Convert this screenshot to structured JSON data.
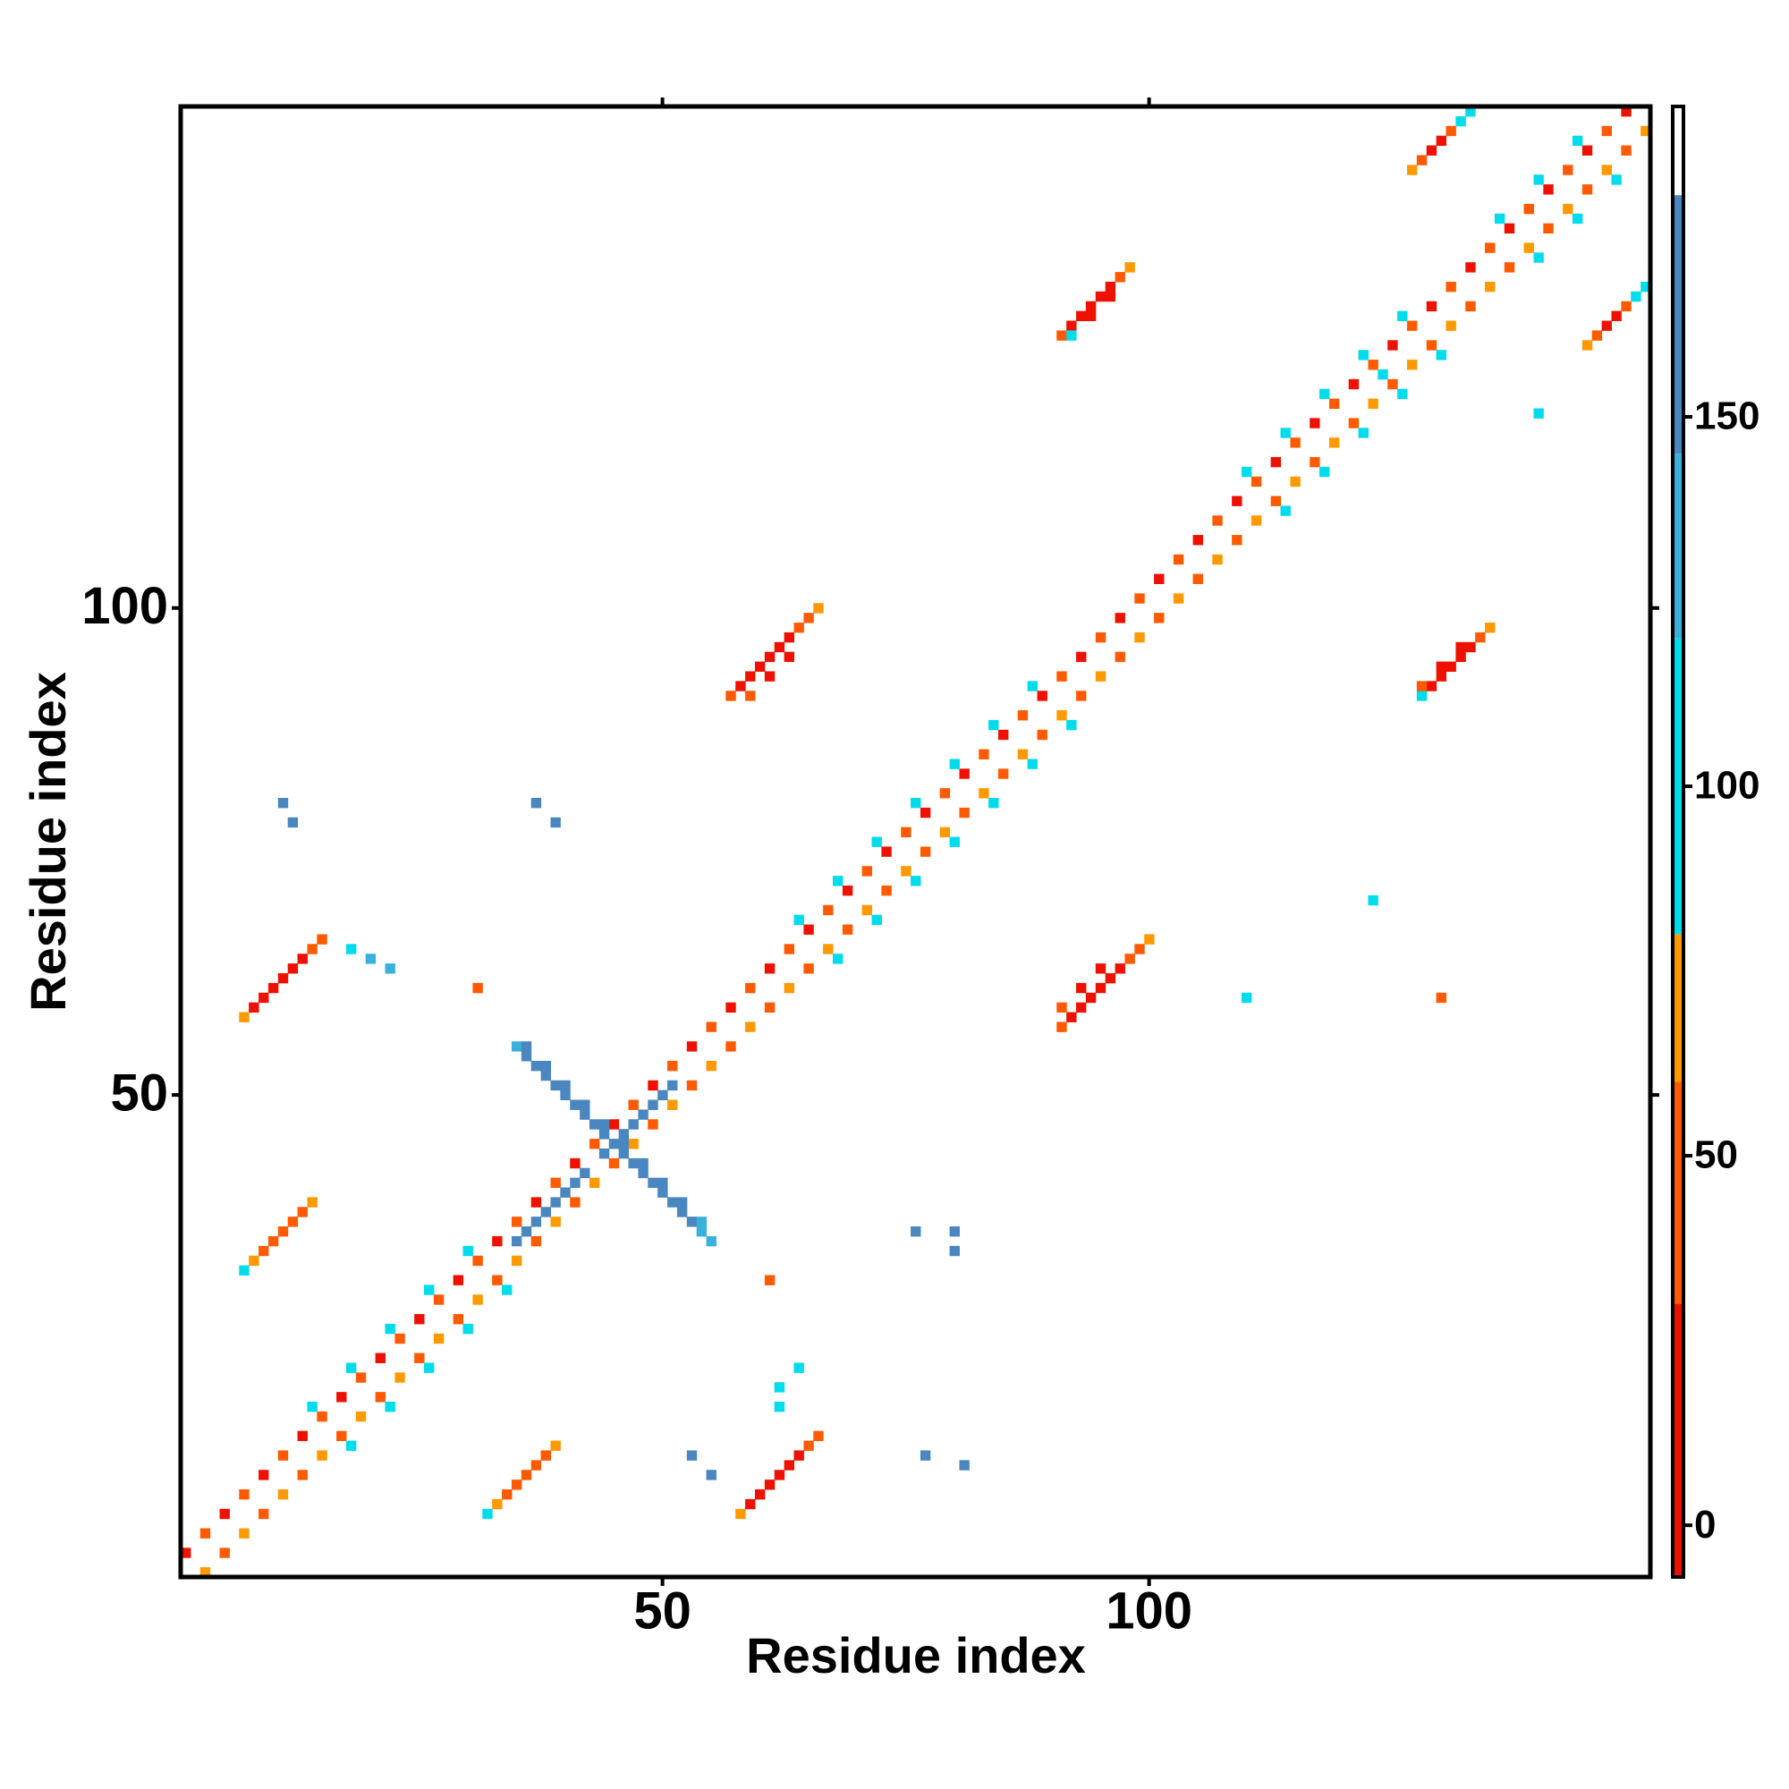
{
  "chart_data": {
    "type": "heatmap",
    "x_label": "Residue index",
    "y_label": "Residue index",
    "xlim": [
      0.5,
      151.5
    ],
    "ylim": [
      0.5,
      151.5
    ],
    "xticks": [
      50,
      100
    ],
    "yticks": [
      50,
      100
    ],
    "clim": [
      -7,
      192
    ],
    "cticks": [
      0,
      50,
      100,
      150
    ],
    "color_bins": [
      -7,
      30,
      60,
      80,
      120,
      145,
      180,
      192
    ],
    "colors": [
      "#ee1100",
      "#ff5a00",
      "#ff9900",
      "#00dcec",
      "#3cb0dc",
      "#4a86c0",
      "#ffffff"
    ],
    "cells": [
      [
        1,
        3,
        10
      ],
      [
        3,
        5,
        45
      ],
      [
        5,
        7,
        10
      ],
      [
        7,
        9,
        45
      ],
      [
        9,
        11,
        10
      ],
      [
        11,
        13,
        45
      ],
      [
        13,
        15,
        10
      ],
      [
        15,
        17,
        45
      ],
      [
        17,
        19,
        10
      ],
      [
        19,
        21,
        45
      ],
      [
        21,
        23,
        10
      ],
      [
        23,
        25,
        45
      ],
      [
        25,
        27,
        10
      ],
      [
        27,
        29,
        45
      ],
      [
        29,
        31,
        10
      ],
      [
        31,
        33,
        45
      ],
      [
        33,
        35,
        10
      ],
      [
        35,
        37,
        45
      ],
      [
        37,
        39,
        10
      ],
      [
        39,
        41,
        45
      ],
      [
        41,
        43,
        10
      ],
      [
        43,
        45,
        45
      ],
      [
        45,
        47,
        10
      ],
      [
        47,
        49,
        45
      ],
      [
        49,
        51,
        10
      ],
      [
        51,
        53,
        45
      ],
      [
        53,
        55,
        10
      ],
      [
        55,
        57,
        45
      ],
      [
        57,
        59,
        10
      ],
      [
        59,
        61,
        45
      ],
      [
        61,
        63,
        10
      ],
      [
        63,
        65,
        45
      ],
      [
        65,
        67,
        10
      ],
      [
        67,
        69,
        45
      ],
      [
        69,
        71,
        10
      ],
      [
        71,
        73,
        45
      ],
      [
        73,
        75,
        10
      ],
      [
        75,
        77,
        45
      ],
      [
        77,
        79,
        10
      ],
      [
        79,
        81,
        45
      ],
      [
        81,
        83,
        10
      ],
      [
        83,
        85,
        45
      ],
      [
        85,
        87,
        10
      ],
      [
        87,
        89,
        45
      ],
      [
        89,
        91,
        10
      ],
      [
        91,
        93,
        45
      ],
      [
        93,
        95,
        10
      ],
      [
        95,
        97,
        45
      ],
      [
        97,
        99,
        10
      ],
      [
        99,
        101,
        45
      ],
      [
        101,
        103,
        10
      ],
      [
        103,
        105,
        45
      ],
      [
        105,
        107,
        10
      ],
      [
        107,
        109,
        45
      ],
      [
        109,
        111,
        10
      ],
      [
        111,
        113,
        45
      ],
      [
        113,
        115,
        10
      ],
      [
        115,
        117,
        45
      ],
      [
        117,
        119,
        10
      ],
      [
        119,
        121,
        45
      ],
      [
        121,
        123,
        10
      ],
      [
        123,
        125,
        45
      ],
      [
        125,
        127,
        10
      ],
      [
        127,
        129,
        45
      ],
      [
        129,
        131,
        10
      ],
      [
        131,
        133,
        45
      ],
      [
        133,
        135,
        10
      ],
      [
        135,
        137,
        45
      ],
      [
        137,
        139,
        10
      ],
      [
        139,
        141,
        45
      ],
      [
        141,
        143,
        10
      ],
      [
        143,
        145,
        45
      ],
      [
        145,
        147,
        10
      ],
      [
        147,
        149,
        45
      ],
      [
        149,
        151,
        10
      ],
      [
        3,
        1,
        70
      ],
      [
        5,
        3,
        45
      ],
      [
        7,
        5,
        70
      ],
      [
        9,
        7,
        45
      ],
      [
        11,
        9,
        70
      ],
      [
        13,
        11,
        45
      ],
      [
        15,
        13,
        70
      ],
      [
        17,
        15,
        45
      ],
      [
        19,
        17,
        70
      ],
      [
        21,
        19,
        45
      ],
      [
        23,
        21,
        70
      ],
      [
        25,
        23,
        45
      ],
      [
        27,
        25,
        70
      ],
      [
        29,
        27,
        45
      ],
      [
        31,
        29,
        70
      ],
      [
        33,
        31,
        45
      ],
      [
        35,
        33,
        70
      ],
      [
        37,
        35,
        45
      ],
      [
        39,
        37,
        70
      ],
      [
        41,
        39,
        45
      ],
      [
        43,
        41,
        70
      ],
      [
        45,
        43,
        45
      ],
      [
        47,
        45,
        70
      ],
      [
        49,
        47,
        45
      ],
      [
        51,
        49,
        70
      ],
      [
        53,
        51,
        45
      ],
      [
        55,
        53,
        70
      ],
      [
        57,
        55,
        45
      ],
      [
        59,
        57,
        70
      ],
      [
        61,
        59,
        45
      ],
      [
        63,
        61,
        70
      ],
      [
        65,
        63,
        45
      ],
      [
        67,
        65,
        70
      ],
      [
        69,
        67,
        45
      ],
      [
        71,
        69,
        70
      ],
      [
        73,
        71,
        45
      ],
      [
        75,
        73,
        70
      ],
      [
        77,
        75,
        45
      ],
      [
        79,
        77,
        70
      ],
      [
        81,
        79,
        45
      ],
      [
        83,
        81,
        70
      ],
      [
        85,
        83,
        45
      ],
      [
        87,
        85,
        70
      ],
      [
        89,
        87,
        45
      ],
      [
        91,
        89,
        70
      ],
      [
        93,
        91,
        45
      ],
      [
        95,
        93,
        70
      ],
      [
        97,
        95,
        45
      ],
      [
        99,
        97,
        70
      ],
      [
        101,
        99,
        45
      ],
      [
        103,
        101,
        70
      ],
      [
        105,
        103,
        45
      ],
      [
        107,
        105,
        70
      ],
      [
        109,
        107,
        45
      ],
      [
        111,
        109,
        70
      ],
      [
        113,
        111,
        45
      ],
      [
        115,
        113,
        70
      ],
      [
        117,
        115,
        45
      ],
      [
        119,
        117,
        70
      ],
      [
        121,
        119,
        45
      ],
      [
        123,
        121,
        70
      ],
      [
        125,
        123,
        45
      ],
      [
        127,
        125,
        70
      ],
      [
        129,
        127,
        45
      ],
      [
        131,
        129,
        70
      ],
      [
        133,
        131,
        45
      ],
      [
        135,
        133,
        70
      ],
      [
        137,
        135,
        45
      ],
      [
        139,
        137,
        70
      ],
      [
        141,
        139,
        45
      ],
      [
        143,
        141,
        70
      ],
      [
        145,
        143,
        45
      ],
      [
        147,
        145,
        70
      ],
      [
        149,
        147,
        45
      ],
      [
        151,
        149,
        70
      ],
      [
        14,
        18,
        100
      ],
      [
        18,
        22,
        100
      ],
      [
        22,
        26,
        100
      ],
      [
        26,
        30,
        100
      ],
      [
        30,
        34,
        100
      ],
      [
        64,
        68,
        100
      ],
      [
        68,
        72,
        100
      ],
      [
        72,
        76,
        100
      ],
      [
        76,
        80,
        100
      ],
      [
        80,
        84,
        100
      ],
      [
        84,
        88,
        100
      ],
      [
        88,
        92,
        100
      ],
      [
        110,
        114,
        100
      ],
      [
        114,
        118,
        100
      ],
      [
        118,
        122,
        100
      ],
      [
        122,
        126,
        100
      ],
      [
        126,
        130,
        100
      ],
      [
        136,
        140,
        100
      ],
      [
        140,
        144,
        100
      ],
      [
        144,
        148,
        100
      ],
      [
        18,
        14,
        100
      ],
      [
        22,
        18,
        100
      ],
      [
        26,
        22,
        100
      ],
      [
        30,
        26,
        100
      ],
      [
        34,
        30,
        100
      ],
      [
        68,
        64,
        100
      ],
      [
        72,
        68,
        100
      ],
      [
        76,
        72,
        100
      ],
      [
        80,
        76,
        100
      ],
      [
        84,
        80,
        100
      ],
      [
        88,
        84,
        100
      ],
      [
        92,
        88,
        100
      ],
      [
        114,
        110,
        100
      ],
      [
        118,
        114,
        100
      ],
      [
        122,
        118,
        100
      ],
      [
        126,
        122,
        100
      ],
      [
        130,
        126,
        100
      ],
      [
        140,
        136,
        100
      ],
      [
        144,
        140,
        100
      ],
      [
        148,
        144,
        100
      ],
      [
        91,
        128,
        45
      ],
      [
        92,
        129,
        10
      ],
      [
        93,
        130,
        10
      ],
      [
        94,
        131,
        10
      ],
      [
        95,
        132,
        10
      ],
      [
        96,
        133,
        10
      ],
      [
        97,
        134,
        45
      ],
      [
        98,
        135,
        70
      ],
      [
        92,
        128,
        100
      ],
      [
        94,
        130,
        10
      ],
      [
        96,
        132,
        10
      ],
      [
        128,
        91,
        100
      ],
      [
        129,
        92,
        10
      ],
      [
        130,
        93,
        10
      ],
      [
        131,
        94,
        10
      ],
      [
        132,
        95,
        10
      ],
      [
        133,
        96,
        10
      ],
      [
        134,
        97,
        45
      ],
      [
        135,
        98,
        70
      ],
      [
        128,
        92,
        45
      ],
      [
        130,
        94,
        10
      ],
      [
        132,
        96,
        10
      ],
      [
        57,
        91,
        45
      ],
      [
        58,
        92,
        10
      ],
      [
        59,
        93,
        10
      ],
      [
        60,
        94,
        10
      ],
      [
        61,
        95,
        10
      ],
      [
        62,
        96,
        10
      ],
      [
        63,
        97,
        10
      ],
      [
        64,
        98,
        45
      ],
      [
        65,
        99,
        45
      ],
      [
        66,
        100,
        70
      ],
      [
        59,
        91,
        45
      ],
      [
        61,
        93,
        10
      ],
      [
        63,
        95,
        10
      ],
      [
        91,
        57,
        45
      ],
      [
        92,
        58,
        10
      ],
      [
        93,
        59,
        10
      ],
      [
        94,
        60,
        10
      ],
      [
        95,
        61,
        10
      ],
      [
        96,
        62,
        10
      ],
      [
        97,
        63,
        10
      ],
      [
        98,
        64,
        45
      ],
      [
        99,
        65,
        45
      ],
      [
        100,
        66,
        70
      ],
      [
        91,
        59,
        45
      ],
      [
        93,
        61,
        10
      ],
      [
        95,
        63,
        10
      ],
      [
        7,
        58,
        70
      ],
      [
        8,
        59,
        10
      ],
      [
        9,
        60,
        10
      ],
      [
        10,
        61,
        10
      ],
      [
        11,
        62,
        10
      ],
      [
        12,
        63,
        10
      ],
      [
        13,
        64,
        10
      ],
      [
        14,
        65,
        45
      ],
      [
        15,
        66,
        45
      ],
      [
        58,
        7,
        70
      ],
      [
        59,
        8,
        10
      ],
      [
        60,
        9,
        10
      ],
      [
        61,
        10,
        10
      ],
      [
        62,
        11,
        10
      ],
      [
        63,
        12,
        10
      ],
      [
        64,
        13,
        10
      ],
      [
        65,
        14,
        45
      ],
      [
        66,
        15,
        45
      ],
      [
        7,
        32,
        100
      ],
      [
        8,
        33,
        70
      ],
      [
        9,
        34,
        45
      ],
      [
        10,
        35,
        45
      ],
      [
        11,
        36,
        45
      ],
      [
        12,
        37,
        45
      ],
      [
        13,
        38,
        45
      ],
      [
        14,
        39,
        70
      ],
      [
        32,
        7,
        100
      ],
      [
        33,
        8,
        70
      ],
      [
        34,
        9,
        45
      ],
      [
        35,
        10,
        45
      ],
      [
        36,
        11,
        45
      ],
      [
        37,
        12,
        45
      ],
      [
        38,
        13,
        45
      ],
      [
        39,
        14,
        70
      ],
      [
        145,
        127,
        70
      ],
      [
        146,
        128,
        45
      ],
      [
        147,
        129,
        10
      ],
      [
        148,
        130,
        10
      ],
      [
        149,
        131,
        45
      ],
      [
        150,
        132,
        100
      ],
      [
        151,
        133,
        100
      ],
      [
        127,
        145,
        70
      ],
      [
        128,
        146,
        45
      ],
      [
        129,
        147,
        10
      ],
      [
        130,
        148,
        10
      ],
      [
        131,
        149,
        45
      ],
      [
        132,
        150,
        100
      ],
      [
        133,
        151,
        100
      ],
      [
        35,
        55,
        130
      ],
      [
        36,
        54,
        160
      ],
      [
        37,
        53,
        160
      ],
      [
        38,
        52,
        160
      ],
      [
        39,
        51,
        160
      ],
      [
        40,
        50,
        160
      ],
      [
        41,
        49,
        160
      ],
      [
        42,
        48,
        160
      ],
      [
        43,
        47,
        160
      ],
      [
        44,
        46,
        160
      ],
      [
        45,
        45,
        160
      ],
      [
        46,
        44,
        160
      ],
      [
        47,
        43,
        160
      ],
      [
        48,
        42,
        160
      ],
      [
        49,
        41,
        160
      ],
      [
        50,
        40,
        160
      ],
      [
        51,
        39,
        160
      ],
      [
        52,
        38,
        160
      ],
      [
        53,
        37,
        160
      ],
      [
        54,
        36,
        130
      ],
      [
        55,
        35,
        130
      ],
      [
        36,
        55,
        160
      ],
      [
        38,
        53,
        160
      ],
      [
        40,
        51,
        160
      ],
      [
        42,
        49,
        160
      ],
      [
        44,
        47,
        160
      ],
      [
        46,
        45,
        160
      ],
      [
        48,
        43,
        160
      ],
      [
        50,
        41,
        160
      ],
      [
        52,
        39,
        160
      ],
      [
        54,
        37,
        130
      ],
      [
        35,
        35,
        160
      ],
      [
        36,
        36,
        160
      ],
      [
        37,
        37,
        160
      ],
      [
        38,
        38,
        160
      ],
      [
        39,
        39,
        160
      ],
      [
        40,
        40,
        160
      ],
      [
        41,
        41,
        160
      ],
      [
        42,
        42,
        160
      ],
      [
        44,
        44,
        160
      ],
      [
        46,
        46,
        160
      ],
      [
        47,
        47,
        160
      ],
      [
        48,
        48,
        160
      ],
      [
        49,
        49,
        160
      ],
      [
        50,
        50,
        160
      ],
      [
        51,
        51,
        160
      ],
      [
        11,
        80,
        160
      ],
      [
        12,
        78,
        160
      ],
      [
        37,
        80,
        160
      ],
      [
        39,
        78,
        160
      ],
      [
        76,
        36,
        160
      ],
      [
        80,
        36,
        160
      ],
      [
        80,
        34,
        160
      ],
      [
        77,
        13,
        160
      ],
      [
        81,
        12,
        160
      ],
      [
        53,
        13,
        160
      ],
      [
        55,
        11,
        160
      ],
      [
        18,
        65,
        100
      ],
      [
        20,
        64,
        130
      ],
      [
        22,
        63,
        130
      ],
      [
        62,
        18,
        100
      ],
      [
        62,
        20,
        100
      ],
      [
        64,
        22,
        100
      ],
      [
        31,
        61,
        45
      ],
      [
        61,
        31,
        45
      ],
      [
        110,
        60,
        100
      ],
      [
        123,
        70,
        100
      ],
      [
        130,
        60,
        45
      ],
      [
        140,
        120,
        100
      ],
      [
        124,
        124,
        100
      ]
    ]
  }
}
